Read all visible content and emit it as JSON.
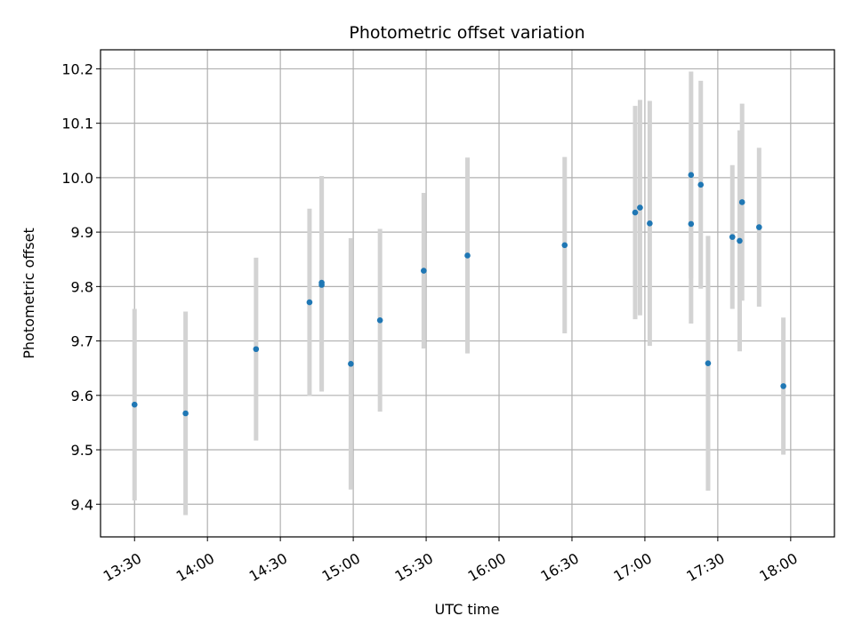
{
  "chart_data": {
    "type": "scatter",
    "title": "Photometric offset variation",
    "xlabel": "UTC time",
    "ylabel": "Photometric offset",
    "x_unit": "UTC time (HH:MM)",
    "xlim": [
      "13:16",
      "18:18"
    ],
    "ylim": [
      9.34,
      10.235
    ],
    "x_ticks": [
      "13:30",
      "14:00",
      "14:30",
      "15:00",
      "15:30",
      "16:00",
      "16:30",
      "17:00",
      "17:30",
      "18:00"
    ],
    "y_ticks": [
      9.4,
      9.5,
      9.6,
      9.7,
      9.8,
      9.9,
      10.0,
      10.1,
      10.2
    ],
    "y_tick_labels": [
      "9.4",
      "9.5",
      "9.6",
      "9.7",
      "9.8",
      "9.9",
      "10.0",
      "10.1",
      "10.2"
    ],
    "grid": true,
    "point_color": "#1f77b4",
    "errorbar_color": "#d3d3d3",
    "points": [
      {
        "x": "13:30",
        "y": 9.583,
        "yerr": 0.176
      },
      {
        "x": "13:51",
        "y": 9.567,
        "yerr": 0.187
      },
      {
        "x": "14:20",
        "y": 9.685,
        "yerr": 0.168
      },
      {
        "x": "14:42",
        "y": 9.771,
        "yerr": 0.172
      },
      {
        "x": "14:47",
        "y": 9.807,
        "yerr": 0.196
      },
      {
        "x": "14:47",
        "y": 9.803,
        "yerr": 0.196
      },
      {
        "x": "14:59",
        "y": 9.658,
        "yerr": 0.231
      },
      {
        "x": "15:11",
        "y": 9.738,
        "yerr": 0.168
      },
      {
        "x": "15:29",
        "y": 9.829,
        "yerr": 0.143
      },
      {
        "x": "15:47",
        "y": 9.857,
        "yerr": 0.18
      },
      {
        "x": "16:27",
        "y": 9.876,
        "yerr": 0.162
      },
      {
        "x": "16:56",
        "y": 9.936,
        "yerr": 0.196
      },
      {
        "x": "16:58",
        "y": 9.945,
        "yerr": 0.198
      },
      {
        "x": "17:02",
        "y": 9.916,
        "yerr": 0.225
      },
      {
        "x": "17:19",
        "y": 10.005,
        "yerr": 0.19
      },
      {
        "x": "17:19",
        "y": 9.915,
        "yerr": 0.183
      },
      {
        "x": "17:23",
        "y": 9.987,
        "yerr": 0.191
      },
      {
        "x": "17:26",
        "y": 9.659,
        "yerr": 0.234
      },
      {
        "x": "17:36",
        "y": 9.891,
        "yerr": 0.132
      },
      {
        "x": "17:39",
        "y": 9.884,
        "yerr": 0.203
      },
      {
        "x": "17:40",
        "y": 9.955,
        "yerr": 0.181
      },
      {
        "x": "17:47",
        "y": 9.909,
        "yerr": 0.146
      },
      {
        "x": "17:57",
        "y": 9.617,
        "yerr": 0.126
      }
    ]
  }
}
